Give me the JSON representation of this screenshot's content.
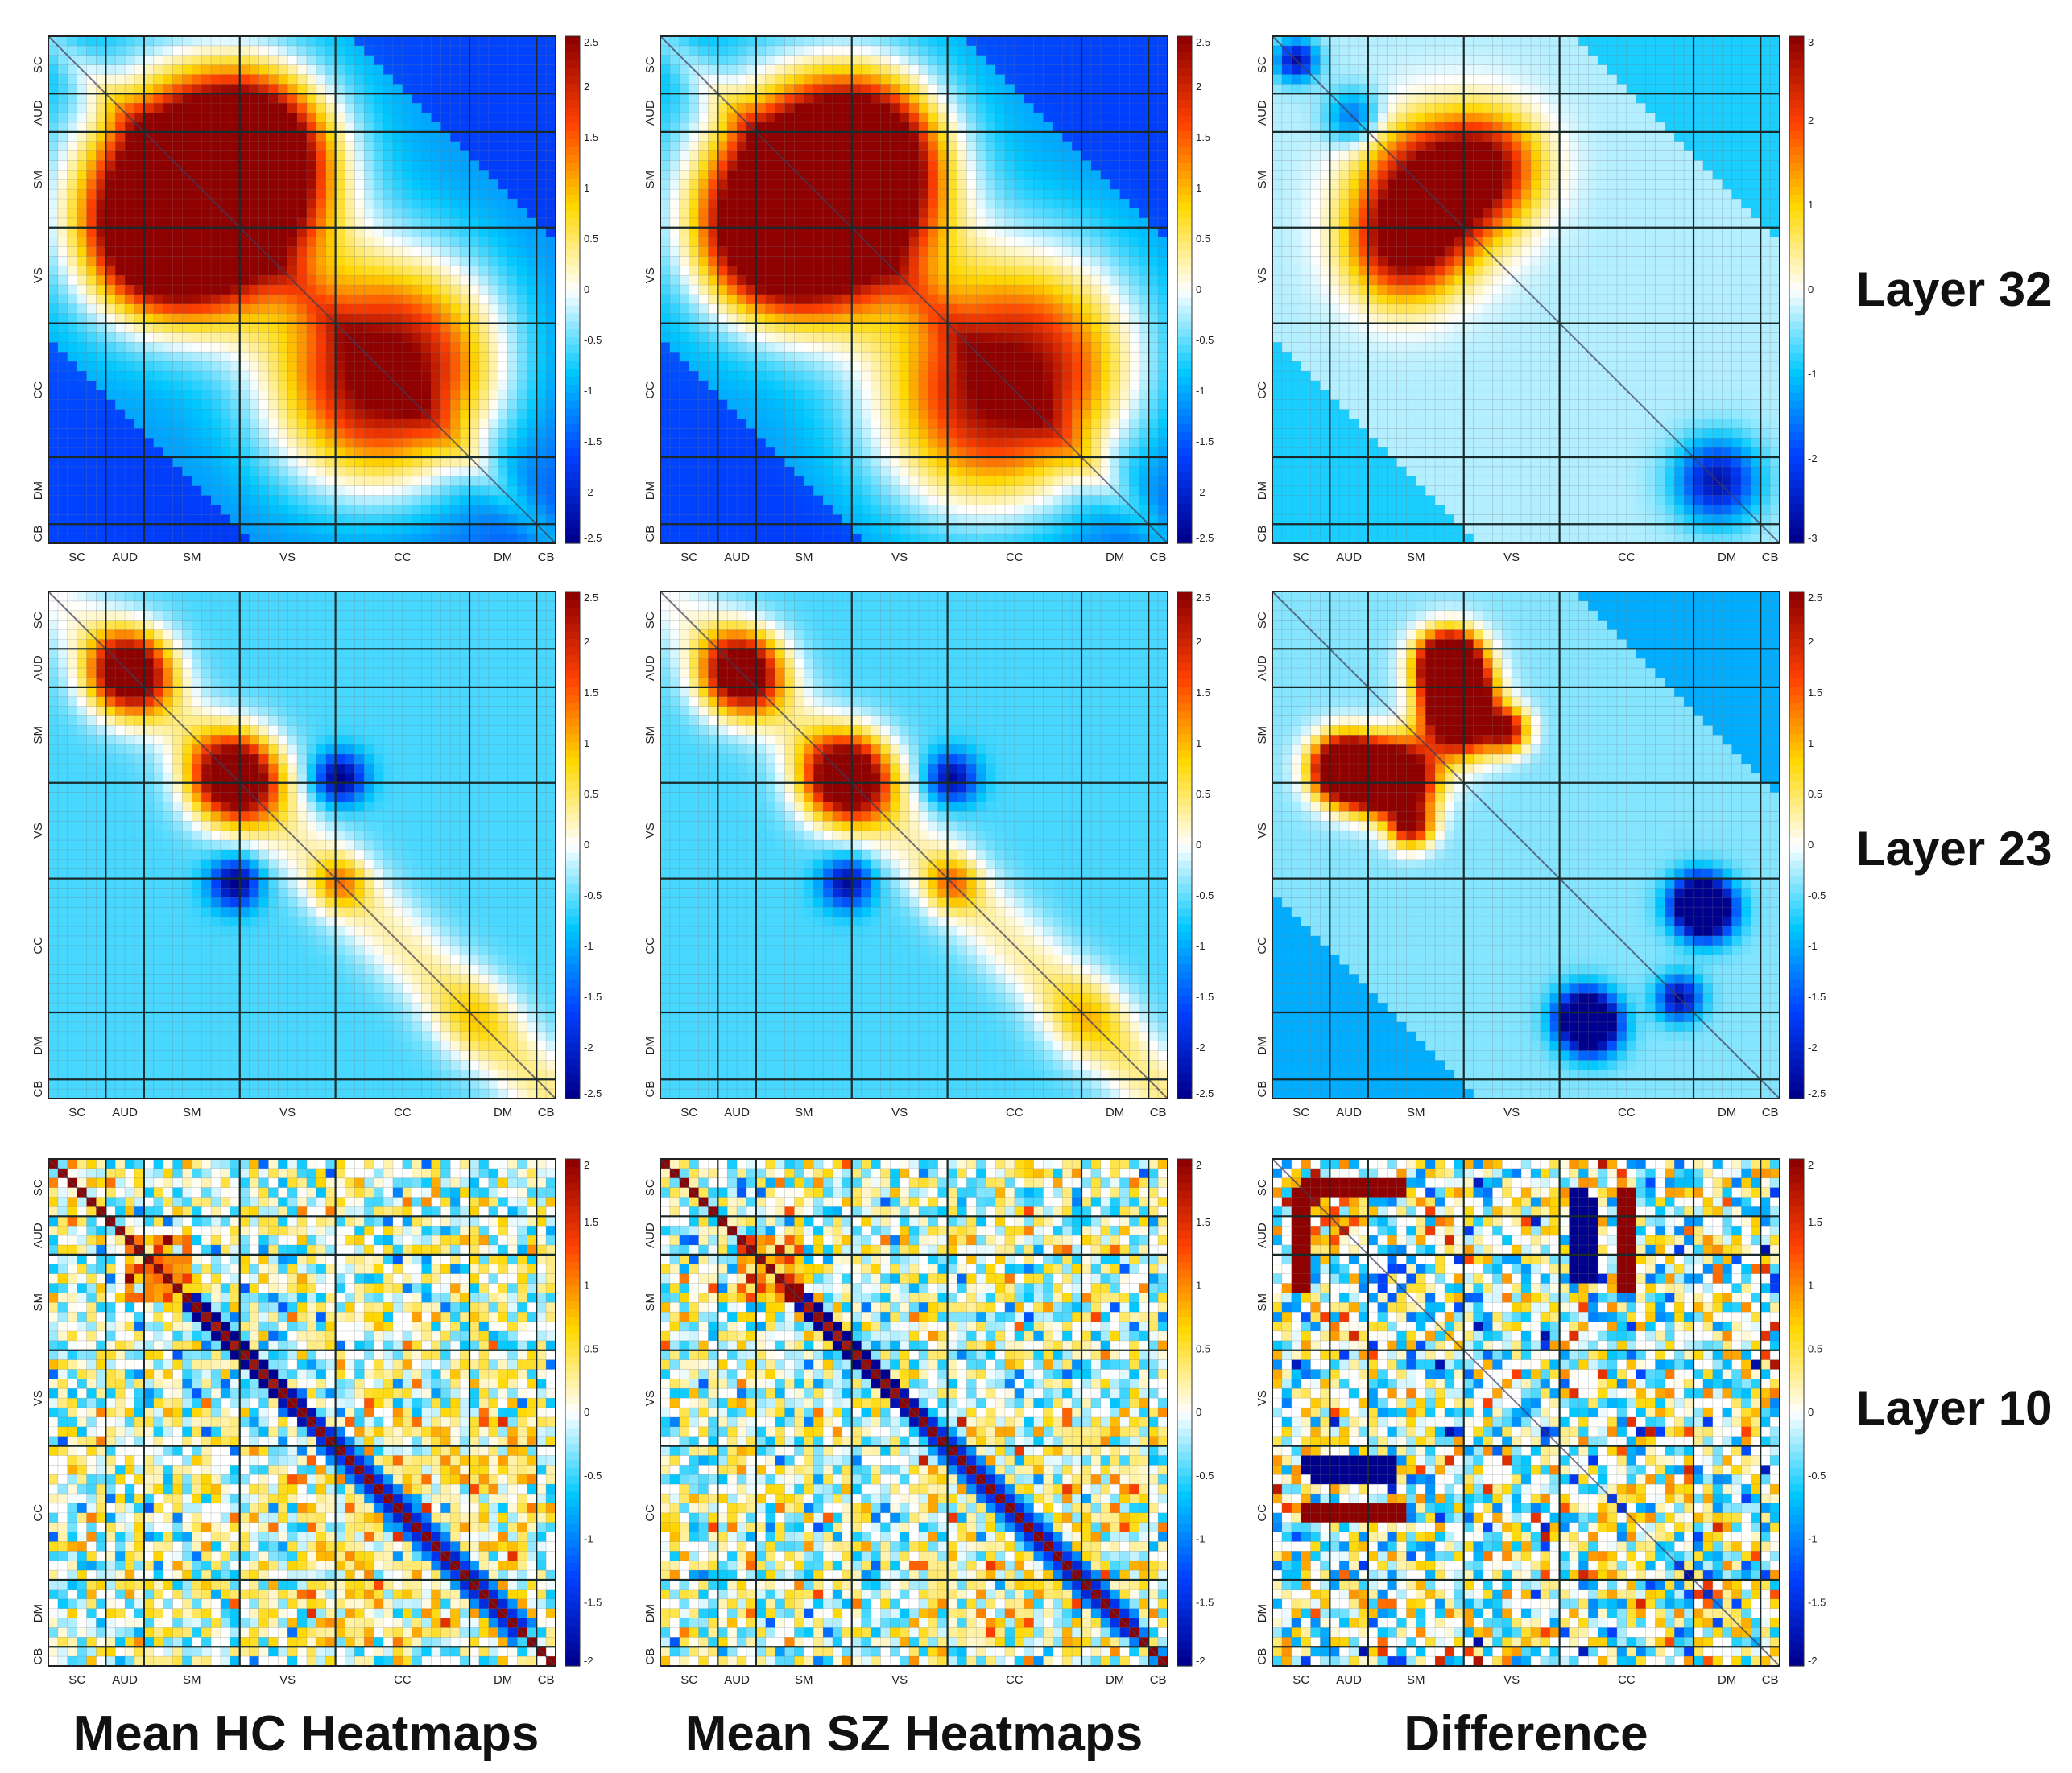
{
  "figure": {
    "row_labels": [
      "Layer 32",
      "Layer 23",
      "Layer 10"
    ],
    "column_labels": [
      "Mean HC Heatmaps",
      "Mean SZ Heatmaps",
      "Difference"
    ]
  },
  "colormap": [
    "#00008f",
    "#0040ff",
    "#00c8ff",
    "#ffffff",
    "#ffd800",
    "#ff4000",
    "#8f0000"
  ],
  "chart_data": [
    {
      "type": "heatmap",
      "id": "hc-l32",
      "row": "Layer 32",
      "column": "Mean HC Heatmaps",
      "network_labels": [
        "SC",
        "AUD",
        "SM",
        "VS",
        "CC",
        "DM",
        "CB"
      ],
      "components": 53,
      "colorbar": {
        "min": -2.5,
        "max": 2.5,
        "ticks": [
          "2.5",
          "2",
          "1.5",
          "1",
          "0.5",
          "0",
          "-0.5",
          "-1",
          "-1.5",
          "-2",
          "-2.5"
        ]
      },
      "pattern": {
        "type": "smooth",
        "base": -1.0,
        "diag": 0.5,
        "blobs": [
          {
            "c": [
              17,
              15
            ],
            "s": 7.5,
            "a": 3.6
          },
          {
            "c": [
              11,
              21
            ],
            "s": 5.0,
            "a": 2.5
          },
          {
            "c": [
              33,
              37
            ],
            "s": 8.0,
            "a": 2.3
          },
          {
            "c": [
              46,
              46
            ],
            "s": 20.0,
            "a": -0.6
          }
        ]
      }
    },
    {
      "type": "heatmap",
      "id": "sz-l32",
      "row": "Layer 32",
      "column": "Mean SZ Heatmaps",
      "network_labels": [
        "SC",
        "AUD",
        "SM",
        "VS",
        "CC",
        "DM",
        "CB"
      ],
      "components": 53,
      "colorbar": {
        "min": -2.5,
        "max": 2.5,
        "ticks": [
          "2.5",
          "2",
          "1.5",
          "1",
          "0.5",
          "0",
          "-0.5",
          "-1",
          "-1.5",
          "-2",
          "-2.5"
        ]
      },
      "pattern": {
        "type": "smooth",
        "base": -1.0,
        "diag": 0.5,
        "blobs": [
          {
            "c": [
              17,
              16
            ],
            "s": 7.5,
            "a": 3.4
          },
          {
            "c": [
              11,
              21
            ],
            "s": 5.0,
            "a": 2.3
          },
          {
            "c": [
              33,
              39
            ],
            "s": 8.5,
            "a": 2.4
          },
          {
            "c": [
              46,
              46
            ],
            "s": 20.0,
            "a": -0.6
          }
        ]
      }
    },
    {
      "type": "heatmap",
      "id": "diff-l32",
      "row": "Layer 32",
      "column": "Difference",
      "network_labels": [
        "SC",
        "AUD",
        "SM",
        "VS",
        "CC",
        "DM",
        "CB"
      ],
      "components": 53,
      "colorbar": {
        "min": -3,
        "max": 3,
        "ticks": [
          "3",
          "2",
          "1",
          "0",
          "-1",
          "-2",
          "-3"
        ]
      },
      "pattern": {
        "type": "smooth",
        "base": -0.3,
        "diag": 0.0,
        "blobs": [
          {
            "c": [
              16,
              16
            ],
            "s": 5.0,
            "a": 3.8
          },
          {
            "c": [
              13,
              22
            ],
            "s": 4.0,
            "a": 2.5
          },
          {
            "c": [
              46,
              46
            ],
            "s": 3.0,
            "a": -2.4
          },
          {
            "c": [
              2,
              2
            ],
            "s": 1.5,
            "a": -2.5
          },
          {
            "c": [
              8,
              8
            ],
            "s": 2.0,
            "a": -1.5
          }
        ]
      }
    },
    {
      "type": "heatmap",
      "id": "hc-l23",
      "row": "Layer 23",
      "column": "Mean HC Heatmaps",
      "network_labels": [
        "SC",
        "AUD",
        "SM",
        "VS",
        "CC",
        "DM",
        "CB"
      ],
      "components": 53,
      "colorbar": {
        "min": -2.5,
        "max": 2.5,
        "ticks": [
          "2.5",
          "2",
          "1.5",
          "1",
          "0.5",
          "0",
          "-0.5",
          "-1",
          "-1.5",
          "-2",
          "-2.5"
        ]
      },
      "pattern": {
        "type": "band",
        "base": -0.6,
        "bandAmp": 1.0,
        "bandWidth": 4.0,
        "blobs": [
          {
            "c": [
              8,
              8
            ],
            "s": 3.0,
            "a": 3.6
          },
          {
            "c": [
              19,
              19
            ],
            "s": 3.2,
            "a": 3.8
          },
          {
            "c": [
              30,
              30
            ],
            "s": 2.0,
            "a": 1.2
          },
          {
            "c": [
              30,
              19
            ],
            "s": 1.8,
            "a": -2.0
          },
          {
            "c": [
              19,
              30
            ],
            "s": 1.8,
            "a": -2.0
          },
          {
            "c": [
              44,
              44
            ],
            "s": 3.0,
            "a": 0.6
          }
        ]
      }
    },
    {
      "type": "heatmap",
      "id": "sz-l23",
      "row": "Layer 23",
      "column": "Mean SZ Heatmaps",
      "network_labels": [
        "SC",
        "AUD",
        "SM",
        "VS",
        "CC",
        "DM",
        "CB"
      ],
      "components": 53,
      "colorbar": {
        "min": -2.5,
        "max": 2.5,
        "ticks": [
          "2.5",
          "2",
          "1.5",
          "1",
          "0.5",
          "0",
          "-0.5",
          "-1",
          "-1.5",
          "-2",
          "-2.5"
        ]
      },
      "pattern": {
        "type": "band",
        "base": -0.6,
        "bandAmp": 1.0,
        "bandWidth": 4.0,
        "blobs": [
          {
            "c": [
              8,
              8
            ],
            "s": 3.0,
            "a": 3.5
          },
          {
            "c": [
              19,
              19
            ],
            "s": 3.2,
            "a": 3.8
          },
          {
            "c": [
              30,
              30
            ],
            "s": 2.0,
            "a": 1.3
          },
          {
            "c": [
              30,
              19
            ],
            "s": 1.8,
            "a": -1.8
          },
          {
            "c": [
              19,
              30
            ],
            "s": 1.8,
            "a": -1.8
          },
          {
            "c": [
              44,
              44
            ],
            "s": 3.0,
            "a": 0.7
          }
        ]
      }
    },
    {
      "type": "heatmap",
      "id": "diff-l23",
      "row": "Layer 23",
      "column": "Difference",
      "network_labels": [
        "SC",
        "AUD",
        "SM",
        "VS",
        "CC",
        "DM",
        "CB"
      ],
      "components": 53,
      "colorbar": {
        "min": -2.5,
        "max": 2.5,
        "ticks": [
          "2.5",
          "2",
          "1.5",
          "1",
          "0.5",
          "0",
          "-0.5",
          "-1",
          "-1.5",
          "-2",
          "-2.5"
        ]
      },
      "pattern": {
        "type": "smooth",
        "base": -0.4,
        "diag": 0.0,
        "blobs": [
          {
            "c": [
              19,
              13
            ],
            "s": 2.6,
            "a": 4.0
          },
          {
            "c": [
              18,
              7
            ],
            "s": 2.0,
            "a": 3.2
          },
          {
            "c": [
              10,
              19
            ],
            "s": 2.2,
            "a": 3.2
          },
          {
            "c": [
              14,
              24
            ],
            "s": 1.6,
            "a": 2.6
          },
          {
            "c": [
              7,
              18
            ],
            "s": 2.5,
            "a": 2.5
          },
          {
            "c": [
              44,
              32
            ],
            "s": 2.0,
            "a": -2.6
          },
          {
            "c": [
              33,
              45
            ],
            "s": 2.0,
            "a": -2.4
          },
          {
            "c": [
              42,
              42
            ],
            "s": 1.6,
            "a": -2.0
          }
        ]
      }
    },
    {
      "type": "heatmap",
      "id": "hc-l10",
      "row": "Layer 10",
      "column": "Mean HC Heatmaps",
      "network_labels": [
        "SC",
        "AUD",
        "SM",
        "VS",
        "CC",
        "DM",
        "CB"
      ],
      "components": 53,
      "colorbar": {
        "min": -2,
        "max": 2,
        "ticks": [
          "2",
          "1.5",
          "1",
          "0.5",
          "0",
          "-0.5",
          "-1",
          "-1.5",
          "-2"
        ]
      },
      "pattern": {
        "type": "noisy",
        "seed": 11,
        "noise": 0.55,
        "sparse": 0.35,
        "diagRed": 2.2,
        "offDiag": -1.8,
        "blocks": [
          {
            "r": [
              8,
              14
            ],
            "c": [
              8,
              14
            ],
            "a": 1.0
          },
          {
            "r": [
              14,
              24
            ],
            "c": [
              14,
              24
            ],
            "a": -0.3
          },
          {
            "r": [
              27,
              50
            ],
            "c": [
              27,
              50
            ],
            "a": 0.3
          }
        ]
      }
    },
    {
      "type": "heatmap",
      "id": "sz-l10",
      "row": "Layer 10",
      "column": "Mean SZ Heatmaps",
      "network_labels": [
        "SC",
        "AUD",
        "SM",
        "VS",
        "CC",
        "DM",
        "CB"
      ],
      "components": 53,
      "colorbar": {
        "min": -2,
        "max": 2,
        "ticks": [
          "2",
          "1.5",
          "1",
          "0.5",
          "0",
          "-0.5",
          "-1",
          "-1.5",
          "-2"
        ]
      },
      "pattern": {
        "type": "noisy",
        "seed": 23,
        "noise": 0.55,
        "sparse": 0.35,
        "diagRed": 2.2,
        "offDiag": -1.8,
        "blocks": [
          {
            "r": [
              8,
              14
            ],
            "c": [
              8,
              14
            ],
            "a": 1.0
          },
          {
            "r": [
              14,
              24
            ],
            "c": [
              14,
              24
            ],
            "a": -0.3
          },
          {
            "r": [
              27,
              50
            ],
            "c": [
              27,
              50
            ],
            "a": 0.3
          }
        ]
      }
    },
    {
      "type": "heatmap",
      "id": "diff-l10",
      "row": "Layer 10",
      "column": "Difference",
      "network_labels": [
        "SC",
        "AUD",
        "SM",
        "VS",
        "CC",
        "DM",
        "CB"
      ],
      "components": 53,
      "colorbar": {
        "min": -2,
        "max": 2,
        "ticks": [
          "2",
          "1.5",
          "1",
          "0.5",
          "0",
          "-0.5",
          "-1",
          "-1.5",
          "-2"
        ]
      },
      "pattern": {
        "type": "noisy",
        "seed": 37,
        "noise": 0.8,
        "sparse": 0.45,
        "diagRed": 0.0,
        "offDiag": 0.0,
        "strips": [
          {
            "r": [
              32,
              33
            ],
            "c": [
              4,
              12
            ],
            "a": -2.4
          },
          {
            "r": [
              36,
              37
            ],
            "c": [
              3,
              13
            ],
            "a": 2.4
          },
          {
            "r": [
              2,
              3
            ],
            "c": [
              3,
              13
            ],
            "a": 2.2
          },
          {
            "r": [
              3,
              13
            ],
            "c": [
              2,
              3
            ],
            "a": 2.2
          },
          {
            "r": [
              3,
              12
            ],
            "c": [
              31,
              32
            ],
            "a": -2.4
          },
          {
            "r": [
              3,
              12
            ],
            "c": [
              36,
              37
            ],
            "a": 2.2
          }
        ]
      }
    }
  ]
}
